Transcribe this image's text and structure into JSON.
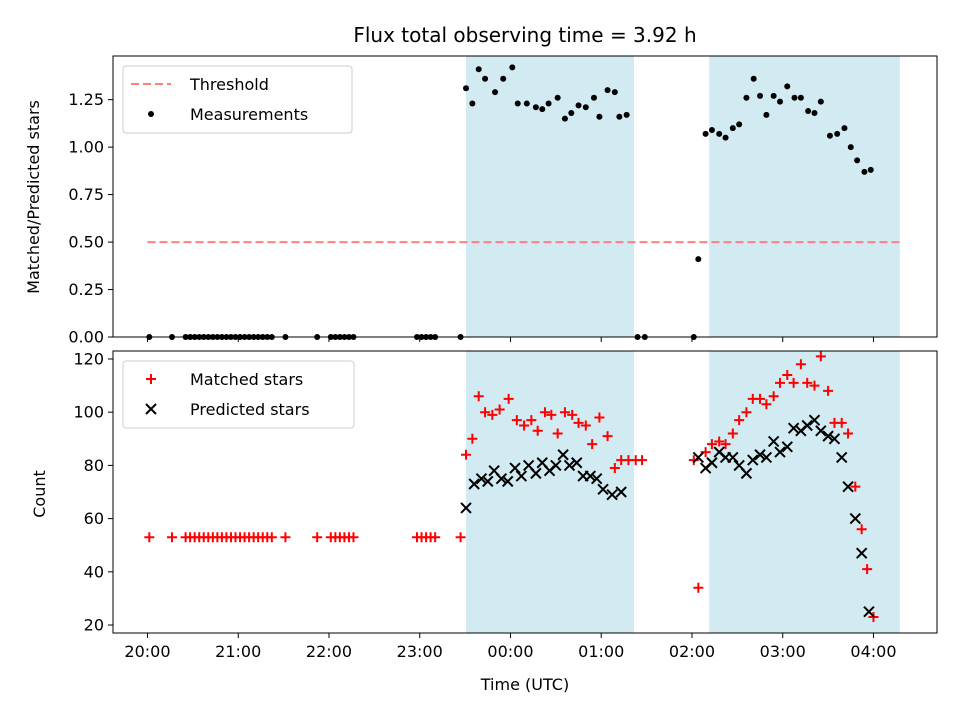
{
  "chart_data": [
    {
      "type": "scatter",
      "title": "Flux total observing time = 3.92 h",
      "xlabel": "",
      "ylabel": "Matched/Predicted stars",
      "ylim": [
        0,
        1.48
      ],
      "yticks": [
        "0.00",
        "0.25",
        "0.50",
        "0.75",
        "1.00",
        "1.25"
      ],
      "ytick_values": [
        0,
        0.25,
        0.5,
        0.75,
        1.0,
        1.25
      ],
      "legend": {
        "position": "upper-left",
        "entries": [
          "Threshold",
          "Measurements"
        ]
      },
      "threshold": {
        "name": "Threshold",
        "y": 0.5,
        "x_range": [
          0,
          8.3
        ],
        "color": "#ff7f7f",
        "style": "dashed"
      },
      "series": [
        {
          "name": "Measurements",
          "color": "#000000",
          "marker": "dot",
          "points": [
            [
              0.02,
              0.0
            ],
            [
              0.27,
              0.0
            ],
            [
              0.42,
              0.0
            ],
            [
              0.47,
              0.0
            ],
            [
              0.52,
              0.0
            ],
            [
              0.57,
              0.0
            ],
            [
              0.62,
              0.0
            ],
            [
              0.67,
              0.0
            ],
            [
              0.72,
              0.0
            ],
            [
              0.77,
              0.0
            ],
            [
              0.82,
              0.0
            ],
            [
              0.87,
              0.0
            ],
            [
              0.92,
              0.0
            ],
            [
              0.97,
              0.0
            ],
            [
              1.02,
              0.0
            ],
            [
              1.07,
              0.0
            ],
            [
              1.12,
              0.0
            ],
            [
              1.17,
              0.0
            ],
            [
              1.22,
              0.0
            ],
            [
              1.27,
              0.0
            ],
            [
              1.32,
              0.0
            ],
            [
              1.37,
              0.0
            ],
            [
              1.52,
              0.0
            ],
            [
              1.87,
              0.0
            ],
            [
              2.02,
              0.0
            ],
            [
              2.07,
              0.0
            ],
            [
              2.12,
              0.0
            ],
            [
              2.17,
              0.0
            ],
            [
              2.22,
              0.0
            ],
            [
              2.27,
              0.0
            ],
            [
              2.97,
              0.0
            ],
            [
              3.02,
              0.0
            ],
            [
              3.07,
              0.0
            ],
            [
              3.12,
              0.0
            ],
            [
              3.17,
              0.0
            ],
            [
              3.45,
              0.0
            ],
            [
              3.51,
              1.31
            ],
            [
              3.58,
              1.23
            ],
            [
              3.65,
              1.41
            ],
            [
              3.72,
              1.36
            ],
            [
              3.83,
              1.29
            ],
            [
              3.92,
              1.36
            ],
            [
              4.02,
              1.42
            ],
            [
              4.08,
              1.23
            ],
            [
              4.18,
              1.23
            ],
            [
              4.28,
              1.21
            ],
            [
              4.35,
              1.2
            ],
            [
              4.42,
              1.23
            ],
            [
              4.52,
              1.26
            ],
            [
              4.6,
              1.15
            ],
            [
              4.67,
              1.18
            ],
            [
              4.75,
              1.22
            ],
            [
              4.83,
              1.21
            ],
            [
              4.92,
              1.26
            ],
            [
              4.98,
              1.16
            ],
            [
              5.07,
              1.3
            ],
            [
              5.15,
              1.29
            ],
            [
              5.2,
              1.16
            ],
            [
              5.28,
              1.17
            ],
            [
              5.4,
              0.0
            ],
            [
              5.48,
              0.0
            ],
            [
              6.02,
              0.0
            ],
            [
              6.07,
              0.41
            ],
            [
              6.15,
              1.07
            ],
            [
              6.22,
              1.09
            ],
            [
              6.3,
              1.07
            ],
            [
              6.37,
              1.05
            ],
            [
              6.45,
              1.1
            ],
            [
              6.52,
              1.12
            ],
            [
              6.6,
              1.26
            ],
            [
              6.68,
              1.36
            ],
            [
              6.75,
              1.27
            ],
            [
              6.82,
              1.17
            ],
            [
              6.9,
              1.27
            ],
            [
              6.97,
              1.24
            ],
            [
              7.05,
              1.32
            ],
            [
              7.13,
              1.26
            ],
            [
              7.2,
              1.26
            ],
            [
              7.28,
              1.19
            ],
            [
              7.35,
              1.18
            ],
            [
              7.42,
              1.24
            ],
            [
              7.52,
              1.06
            ],
            [
              7.6,
              1.07
            ],
            [
              7.68,
              1.1
            ],
            [
              7.75,
              1.0
            ],
            [
              7.82,
              0.93
            ],
            [
              7.9,
              0.87
            ],
            [
              7.97,
              0.88
            ]
          ]
        }
      ],
      "bands": [
        [
          3.51,
          5.36
        ],
        [
          6.19,
          8.29
        ]
      ],
      "band_color": "#add8e6"
    },
    {
      "type": "scatter",
      "title": "",
      "xlabel": "Time (UTC)",
      "ylabel": "Count",
      "ylim": [
        17,
        123
      ],
      "yticks": [
        "20",
        "40",
        "60",
        "80",
        "100",
        "120"
      ],
      "ytick_values": [
        20,
        40,
        60,
        80,
        100,
        120
      ],
      "xticks": [
        "20:00",
        "21:00",
        "22:00",
        "23:00",
        "00:00",
        "01:00",
        "02:00",
        "03:00",
        "04:00"
      ],
      "xtick_values": [
        0,
        1,
        2,
        3,
        4,
        5,
        6,
        7,
        8
      ],
      "xlim": [
        -0.38,
        8.7
      ],
      "legend": {
        "position": "upper-left",
        "entries": [
          "Matched stars",
          "Predicted stars"
        ]
      },
      "series": [
        {
          "name": "Matched stars",
          "color": "#ff0000",
          "marker": "plus",
          "points": [
            [
              0.02,
              53
            ],
            [
              0.27,
              53
            ],
            [
              0.42,
              53
            ],
            [
              0.47,
              53
            ],
            [
              0.52,
              53
            ],
            [
              0.57,
              53
            ],
            [
              0.62,
              53
            ],
            [
              0.67,
              53
            ],
            [
              0.72,
              53
            ],
            [
              0.77,
              53
            ],
            [
              0.82,
              53
            ],
            [
              0.87,
              53
            ],
            [
              0.92,
              53
            ],
            [
              0.97,
              53
            ],
            [
              1.02,
              53
            ],
            [
              1.07,
              53
            ],
            [
              1.12,
              53
            ],
            [
              1.17,
              53
            ],
            [
              1.22,
              53
            ],
            [
              1.27,
              53
            ],
            [
              1.32,
              53
            ],
            [
              1.37,
              53
            ],
            [
              1.52,
              53
            ],
            [
              1.87,
              53
            ],
            [
              2.02,
              53
            ],
            [
              2.07,
              53
            ],
            [
              2.12,
              53
            ],
            [
              2.17,
              53
            ],
            [
              2.22,
              53
            ],
            [
              2.27,
              53
            ],
            [
              2.97,
              53
            ],
            [
              3.02,
              53
            ],
            [
              3.07,
              53
            ],
            [
              3.12,
              53
            ],
            [
              3.17,
              53
            ],
            [
              3.45,
              53
            ],
            [
              3.51,
              84
            ],
            [
              3.58,
              90
            ],
            [
              3.65,
              106
            ],
            [
              3.72,
              100
            ],
            [
              3.8,
              99
            ],
            [
              3.88,
              101
            ],
            [
              3.98,
              105
            ],
            [
              4.07,
              97
            ],
            [
              4.15,
              95
            ],
            [
              4.23,
              97
            ],
            [
              4.3,
              93
            ],
            [
              4.38,
              100
            ],
            [
              4.45,
              99
            ],
            [
              4.52,
              92
            ],
            [
              4.6,
              100
            ],
            [
              4.68,
              99
            ],
            [
              4.75,
              96
            ],
            [
              4.83,
              95
            ],
            [
              4.9,
              88
            ],
            [
              4.98,
              98
            ],
            [
              5.07,
              91
            ],
            [
              5.15,
              79
            ],
            [
              5.22,
              82
            ],
            [
              5.3,
              82
            ],
            [
              5.38,
              82
            ],
            [
              5.45,
              82
            ],
            [
              6.02,
              82
            ],
            [
              6.07,
              34
            ],
            [
              6.15,
              85
            ],
            [
              6.22,
              88
            ],
            [
              6.3,
              89
            ],
            [
              6.37,
              88
            ],
            [
              6.45,
              92
            ],
            [
              6.52,
              97
            ],
            [
              6.6,
              100
            ],
            [
              6.67,
              105
            ],
            [
              6.75,
              105
            ],
            [
              6.82,
              103
            ],
            [
              6.9,
              106
            ],
            [
              6.97,
              111
            ],
            [
              7.05,
              114
            ],
            [
              7.12,
              111
            ],
            [
              7.2,
              118
            ],
            [
              7.27,
              111
            ],
            [
              7.35,
              110
            ],
            [
              7.42,
              121
            ],
            [
              7.5,
              108
            ],
            [
              7.57,
              96
            ],
            [
              7.65,
              96
            ],
            [
              7.72,
              92
            ],
            [
              7.8,
              72
            ],
            [
              7.87,
              56
            ],
            [
              7.93,
              41
            ],
            [
              8.0,
              23
            ]
          ]
        },
        {
          "name": "Predicted stars",
          "color": "#000000",
          "marker": "x",
          "points": [
            [
              3.51,
              64
            ],
            [
              3.6,
              73
            ],
            [
              3.68,
              75
            ],
            [
              3.75,
              74
            ],
            [
              3.82,
              78
            ],
            [
              3.9,
              75
            ],
            [
              3.97,
              74
            ],
            [
              4.05,
              79
            ],
            [
              4.12,
              76
            ],
            [
              4.2,
              80
            ],
            [
              4.28,
              77
            ],
            [
              4.35,
              81
            ],
            [
              4.43,
              78
            ],
            [
              4.5,
              80
            ],
            [
              4.58,
              84
            ],
            [
              4.65,
              80
            ],
            [
              4.73,
              81
            ],
            [
              4.8,
              76
            ],
            [
              4.88,
              76
            ],
            [
              4.95,
              75
            ],
            [
              5.02,
              71
            ],
            [
              5.12,
              69
            ],
            [
              5.22,
              70
            ],
            [
              6.07,
              83
            ],
            [
              6.15,
              79
            ],
            [
              6.22,
              81
            ],
            [
              6.3,
              85
            ],
            [
              6.37,
              83
            ],
            [
              6.45,
              83
            ],
            [
              6.52,
              80
            ],
            [
              6.6,
              77
            ],
            [
              6.67,
              82
            ],
            [
              6.75,
              84
            ],
            [
              6.82,
              83
            ],
            [
              6.9,
              89
            ],
            [
              6.97,
              85
            ],
            [
              7.05,
              87
            ],
            [
              7.12,
              94
            ],
            [
              7.2,
              93
            ],
            [
              7.27,
              95
            ],
            [
              7.35,
              97
            ],
            [
              7.42,
              93
            ],
            [
              7.5,
              91
            ],
            [
              7.57,
              90
            ],
            [
              7.65,
              83
            ],
            [
              7.72,
              72
            ],
            [
              7.8,
              60
            ],
            [
              7.87,
              47
            ],
            [
              7.95,
              25
            ]
          ]
        }
      ],
      "bands": [
        [
          3.51,
          5.36
        ],
        [
          6.19,
          8.29
        ]
      ],
      "band_color": "#add8e6"
    }
  ]
}
